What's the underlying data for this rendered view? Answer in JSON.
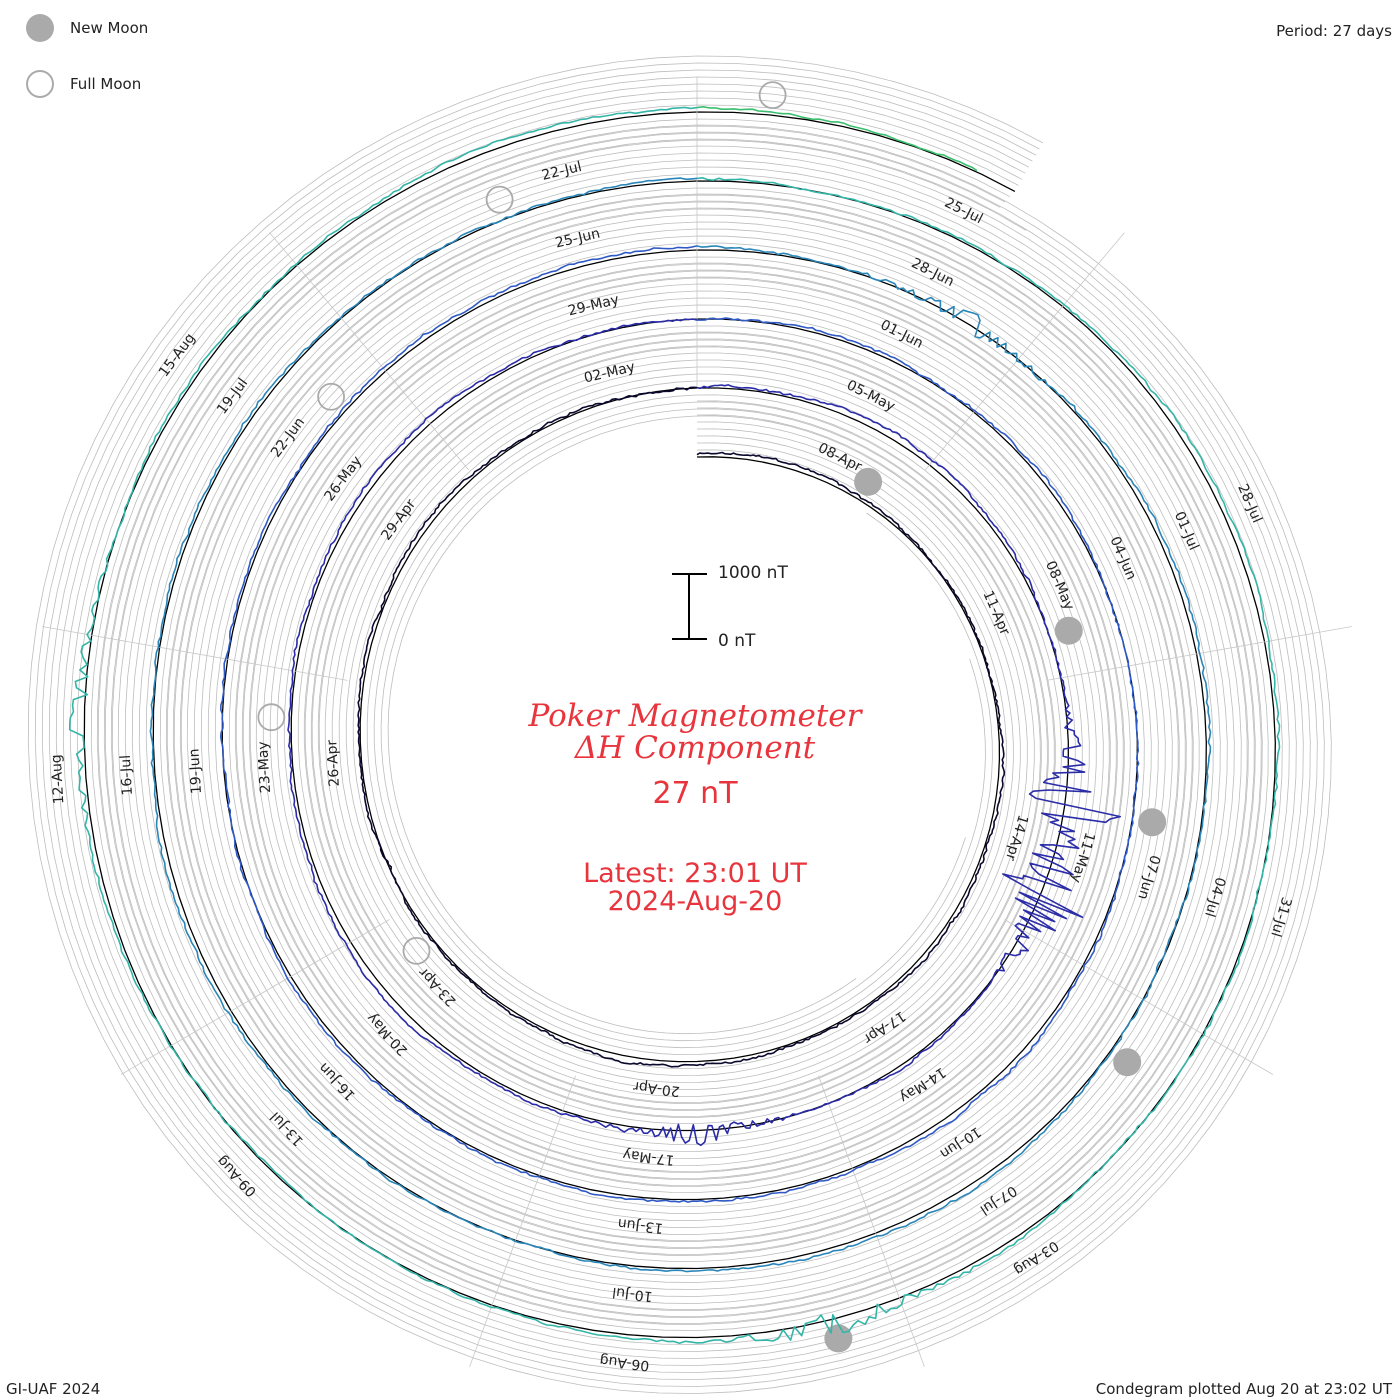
{
  "header": {
    "period_label": "Period: 27 days"
  },
  "legend": {
    "new_moon_label": "New Moon",
    "full_moon_label": "Full Moon",
    "new_moon_color": "#aaaaaa",
    "full_moon_color": "#aaaaaa"
  },
  "title": {
    "line1": "Poker Magnetometer",
    "line2": "ΔH Component",
    "units": "27 nT",
    "latest_line1": "Latest: 23:01 UT",
    "latest_line2": "2024-Aug-20",
    "color": "#e8343c"
  },
  "scale_bar": {
    "top_label": "1000 nT",
    "bottom_label": "0 nT"
  },
  "footer": {
    "left": "GI-UAF 2024",
    "right": "Condegram plotted Aug 20 at 23:02 UT"
  },
  "chart_data": {
    "type": "line",
    "subtype": "condegram (spiral time series)",
    "period_days": 27,
    "start_date": "2024-04-06",
    "end_date": "2024-08-20",
    "grid": true,
    "units": "nT",
    "date_labels": [
      "08-Apr",
      "11-Apr",
      "14-Apr",
      "17-Apr",
      "20-Apr",
      "23-Apr",
      "26-Apr",
      "29-Apr",
      "02-May",
      "05-May",
      "08-May",
      "11-May",
      "14-May",
      "17-May",
      "20-May",
      "23-May",
      "26-May",
      "29-May",
      "01-Jun",
      "04-Jun",
      "07-Jun",
      "10-Jun",
      "13-Jun",
      "16-Jun",
      "19-Jun",
      "22-Jun",
      "25-Jun",
      "28-Jun",
      "01-Jul",
      "04-Jul",
      "07-Jul",
      "10-Jul",
      "13-Jul",
      "16-Jul",
      "19-Jul",
      "22-Jul",
      "25-Jul",
      "28-Jul",
      "31-Jul",
      "03-Aug",
      "06-Aug",
      "09-Aug",
      "12-Aug",
      "15-Aug"
    ],
    "series_colors": [
      "#0b0a2e",
      "#2b2ca8",
      "#2f59c4",
      "#2a86b8",
      "#34b5a8",
      "#3bbf6e",
      "#7fc23a",
      "#b9b52a",
      "#c9902a",
      "#c06416",
      "#c0180c"
    ],
    "new_moon_dates": [
      "2024-04-08",
      "2024-05-08",
      "2024-06-06",
      "2024-07-05",
      "2024-08-04"
    ],
    "full_moon_dates": [
      "2024-04-23",
      "2024-05-23",
      "2024-06-22",
      "2024-07-21",
      "2024-08-19"
    ],
    "notable_disturbances": [
      {
        "date": "2024-05-10",
        "approx_delta_h_nT": 1100
      },
      {
        "date": "2024-05-11",
        "approx_delta_h_nT": 1000
      },
      {
        "date": "2024-05-16",
        "approx_delta_h_nT": 300
      },
      {
        "date": "2024-06-28",
        "approx_delta_h_nT": 250
      },
      {
        "date": "2024-08-04",
        "approx_delta_h_nT": 300
      },
      {
        "date": "2024-08-12",
        "approx_delta_h_nT": 250
      }
    ]
  }
}
